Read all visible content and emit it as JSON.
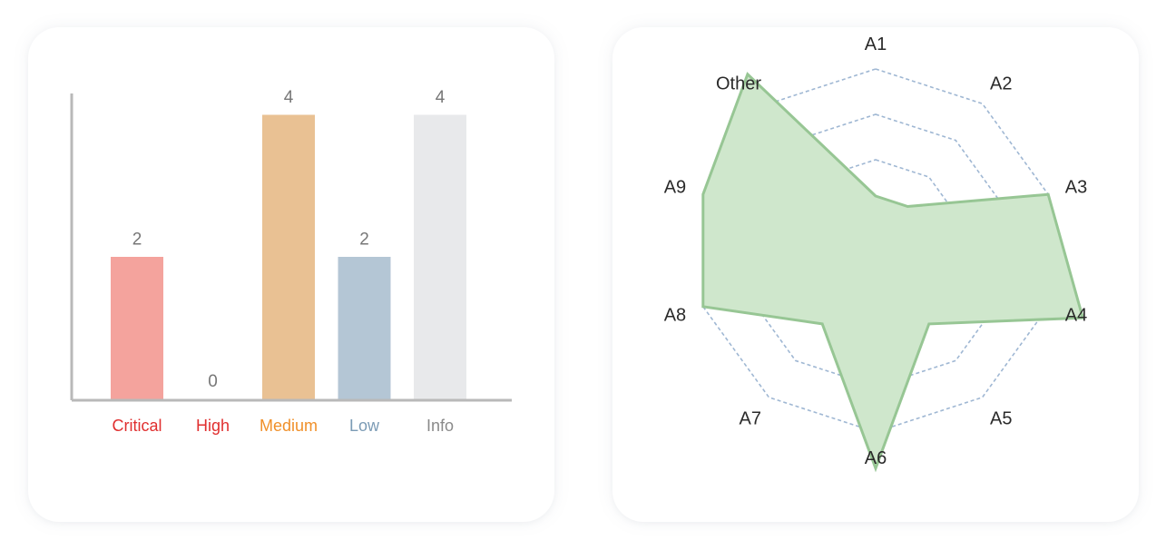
{
  "chart_data": [
    {
      "type": "bar",
      "categories": [
        "Critical",
        "High",
        "Medium",
        "Low",
        "Info"
      ],
      "values": [
        2,
        0,
        4,
        2,
        4
      ],
      "ylim": [
        0,
        4
      ],
      "grid": false,
      "bar_colors": [
        "#f4a39d",
        "#f4a39d",
        "#e9c193",
        "#b4c6d5",
        "#e8e9eb"
      ],
      "label_colors": [
        "#e02f2f",
        "#e02f2f",
        "#f0902a",
        "#7b9bb5",
        "#8a8a8a"
      ],
      "value_label_color": "#777777",
      "axis_color": "#b9b9b9"
    },
    {
      "type": "radar",
      "axes": [
        "A1",
        "A2",
        "A3",
        "A4",
        "A5",
        "A6",
        "A7",
        "A8",
        "A9",
        "Other"
      ],
      "values": [
        0.3,
        0.3,
        1.0,
        1.2,
        0.5,
        1.2,
        0.5,
        1.0,
        1.0,
        1.2
      ],
      "rings": [
        0.25,
        0.5,
        0.75,
        1.0
      ],
      "grid": true,
      "fill_color": "#cfe7cc",
      "stroke_color": "#97c694",
      "grid_color": "#9fb7d3",
      "label_color": "#2a2a2a"
    }
  ]
}
